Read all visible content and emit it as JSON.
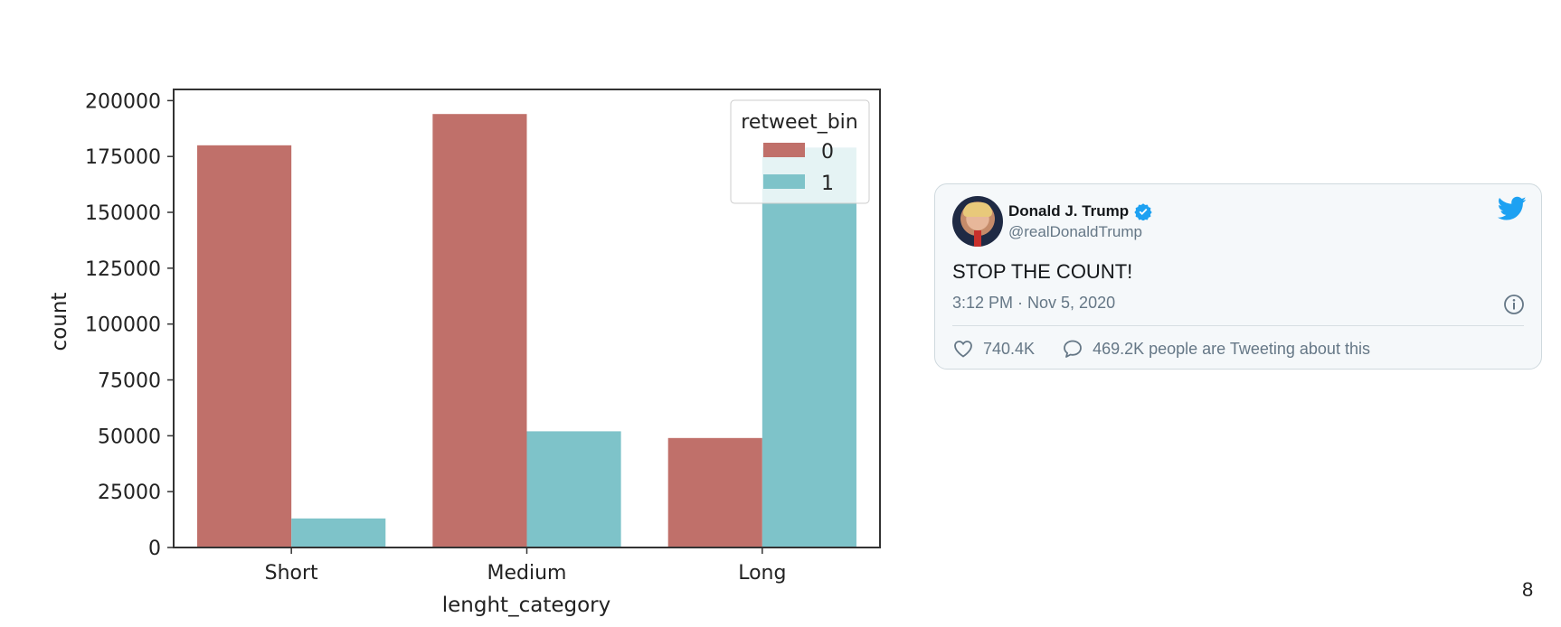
{
  "chart_data": {
    "type": "bar",
    "categories": [
      "Short",
      "Medium",
      "Long"
    ],
    "series": [
      {
        "name": "0",
        "color": "#c0706a",
        "values": [
          180000,
          194000,
          49000
        ]
      },
      {
        "name": "1",
        "color": "#7ec3c9",
        "values": [
          13000,
          52000,
          179000
        ]
      }
    ],
    "xlabel": "lenght_category",
    "ylabel": "count",
    "ylim": [
      0,
      205000
    ],
    "yticks": [
      0,
      25000,
      50000,
      75000,
      100000,
      125000,
      150000,
      175000,
      200000
    ],
    "legend": {
      "title": "retweet_bin",
      "placement": "top-right"
    },
    "grid": false
  },
  "tweet": {
    "display_name": "Donald J. Trump",
    "handle": "@realDonaldTrump",
    "text": "STOP THE COUNT!",
    "timestamp": "3:12 PM · Nov 5, 2020",
    "likes": "740.4K",
    "tweeting": "469.2K people are Tweeting about this",
    "accent_color": "#1da1f2",
    "icons": [
      "verified-icon",
      "twitter-logo-icon",
      "info-icon",
      "heart-icon",
      "comment-icon"
    ]
  },
  "page_number": "8"
}
